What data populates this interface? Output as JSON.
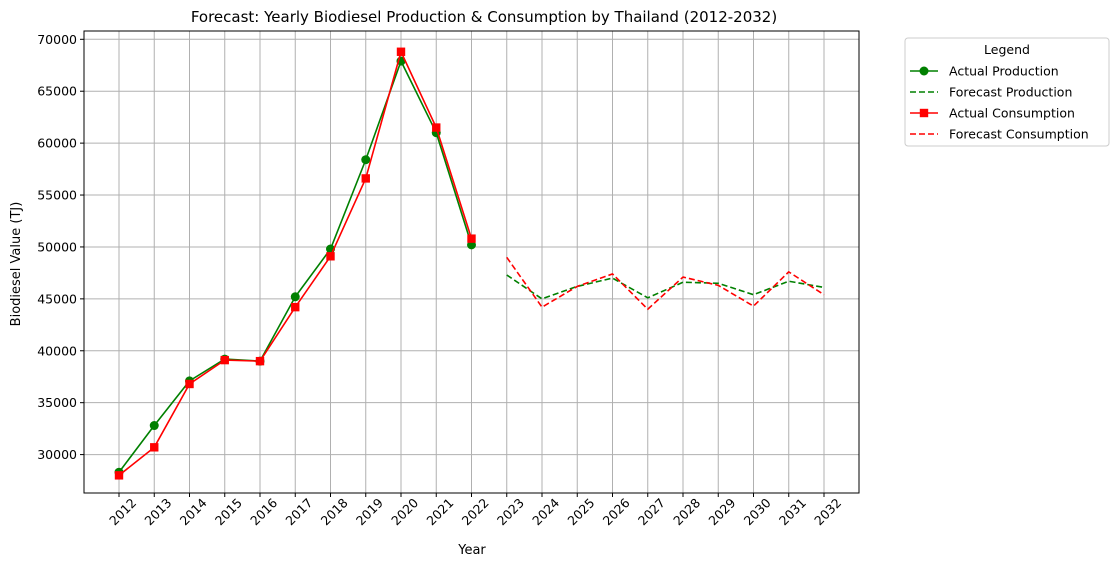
{
  "chart_data": {
    "type": "line",
    "title": "Forecast: Yearly Biodiesel Production & Consumption by Thailand (2012-2032)",
    "xlabel": "Year",
    "ylabel": "Biodiesel Value (TJ)",
    "ylim": [
      26300,
      70800
    ],
    "yticks": [
      30000,
      35000,
      40000,
      45000,
      50000,
      55000,
      60000,
      65000,
      70000
    ],
    "x": [
      2012,
      2013,
      2014,
      2015,
      2016,
      2017,
      2018,
      2019,
      2020,
      2021,
      2022,
      2023,
      2024,
      2025,
      2026,
      2027,
      2028,
      2029,
      2030,
      2031,
      2032
    ],
    "grid": true,
    "legend": {
      "title": "Legend",
      "placement": "outside-top-right"
    },
    "series": [
      {
        "name": "Actual Production",
        "color": "#008000",
        "style": "solid",
        "marker": "circle",
        "x": [
          2012,
          2013,
          2014,
          2015,
          2016,
          2017,
          2018,
          2019,
          2020,
          2021,
          2022
        ],
        "values": [
          28300,
          32800,
          37100,
          39200,
          39000,
          45200,
          49800,
          58400,
          67900,
          61000,
          50200
        ]
      },
      {
        "name": "Forecast Production",
        "color": "#008000",
        "style": "dashed",
        "marker": "none",
        "x": [
          2023,
          2024,
          2025,
          2026,
          2027,
          2028,
          2029,
          2030,
          2031,
          2032
        ],
        "values": [
          47300,
          45000,
          46200,
          47000,
          45100,
          46600,
          46500,
          45400,
          46700,
          46100
        ]
      },
      {
        "name": "Actual Consumption",
        "color": "#ff0000",
        "style": "solid",
        "marker": "square",
        "x": [
          2012,
          2013,
          2014,
          2015,
          2016,
          2017,
          2018,
          2019,
          2020,
          2021,
          2022
        ],
        "values": [
          28000,
          30700,
          36800,
          39100,
          39000,
          44200,
          49100,
          56600,
          68800,
          61500,
          50800
        ]
      },
      {
        "name": "Forecast Consumption",
        "color": "#ff0000",
        "style": "dashed",
        "marker": "none",
        "x": [
          2023,
          2024,
          2025,
          2026,
          2027,
          2028,
          2029,
          2030,
          2031,
          2032
        ],
        "values": [
          49000,
          44200,
          46200,
          47400,
          44000,
          47100,
          46300,
          44300,
          47600,
          45400
        ]
      }
    ]
  }
}
